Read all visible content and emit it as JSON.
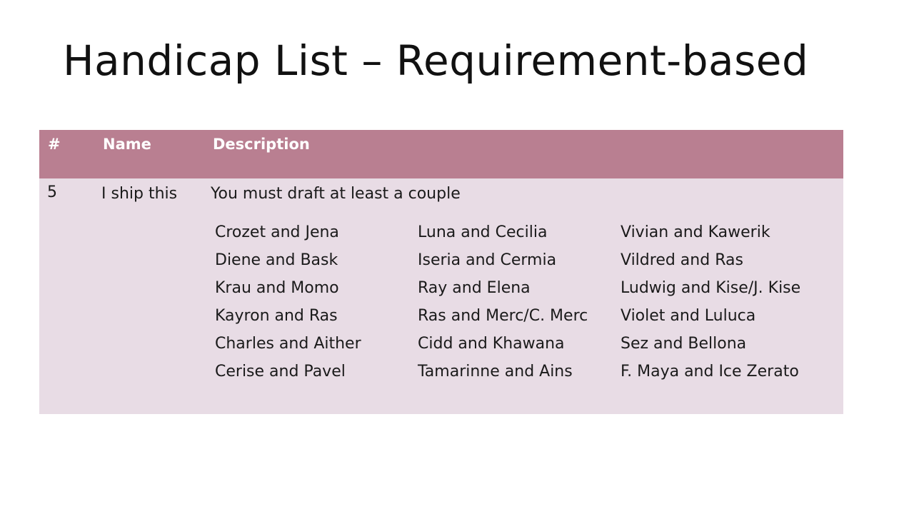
{
  "slide": {
    "title": "Handicap List – Requirement-based"
  },
  "table": {
    "headers": {
      "number": "#",
      "name": "Name",
      "description": "Description"
    },
    "row": {
      "number": "5",
      "name": "I ship this",
      "description": "You must draft at least a couple",
      "couples": [
        [
          "Crozet and Jena",
          "Diene and Bask",
          "Krau and Momo",
          "Kayron and Ras",
          "Charles and Aither",
          "Cerise and Pavel"
        ],
        [
          "Luna and Cecilia",
          "Iseria and Cermia",
          "Ray and Elena",
          "Ras and Merc/C. Merc",
          "Cidd and Khawana",
          "Tamarinne and Ains"
        ],
        [
          "Vivian and Kawerik",
          "Vildred and Ras",
          "Ludwig and Kise/J. Kise",
          "Violet and Luluca",
          "Sez and Bellona",
          "F. Maya and Ice Zerato"
        ]
      ]
    }
  },
  "colors": {
    "header_background": "#b97f91",
    "row_background": "#e8dce5",
    "header_text": "#ffffff"
  }
}
